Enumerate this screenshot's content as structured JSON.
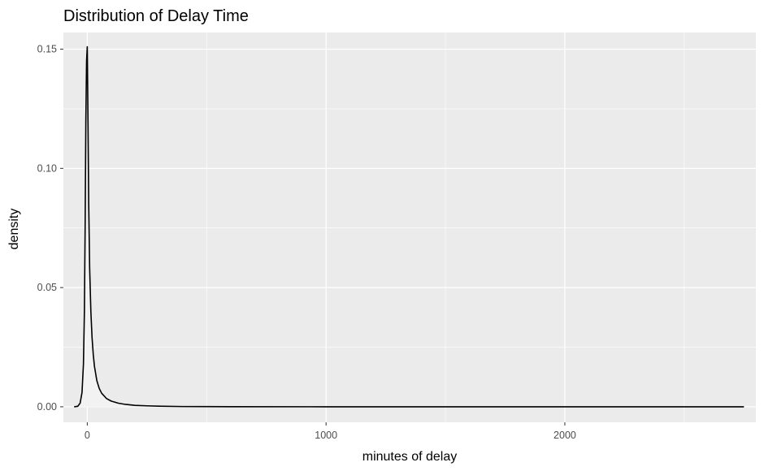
{
  "chart_data": {
    "type": "area",
    "title": "Distribution of Delay Time",
    "xlabel": "minutes of delay",
    "ylabel": "density",
    "xlim": [
      -100,
      2800
    ],
    "ylim": [
      -0.0065,
      0.157
    ],
    "x_ticks": [
      0,
      1000,
      2000
    ],
    "x_tick_labels": [
      "0",
      "1000",
      "2000"
    ],
    "x_minor_ticks": [
      -500,
      500,
      1500,
      2500
    ],
    "y_ticks": [
      0.0,
      0.05,
      0.1,
      0.15
    ],
    "y_tick_labels": [
      "0.00",
      "0.05",
      "0.10",
      "0.15"
    ],
    "y_minor_ticks": [
      0.025,
      0.075,
      0.125
    ],
    "grid": true,
    "legend": "none",
    "colors": {
      "panel_background": "#ebebeb",
      "grid": "#ffffff",
      "line": "#000000",
      "fill": "#f2f2f2",
      "tick_label": "#4d4d4d",
      "text": "#000000"
    },
    "series": [
      {
        "x": [
          -55,
          -40,
          -30,
          -22,
          -16,
          -12,
          -9,
          -6,
          -3,
          0,
          3,
          6,
          10,
          15,
          20,
          25,
          30,
          40,
          50,
          60,
          80,
          100,
          130,
          160,
          200,
          250,
          300,
          400,
          600,
          1000,
          1500,
          2000,
          2500,
          2750
        ],
        "y": [
          0,
          0.0002,
          0.0015,
          0.006,
          0.018,
          0.04,
          0.075,
          0.12,
          0.145,
          0.151,
          0.12,
          0.085,
          0.058,
          0.04,
          0.029,
          0.022,
          0.017,
          0.011,
          0.0077,
          0.0057,
          0.0035,
          0.0024,
          0.0015,
          0.001,
          0.0006,
          0.0004,
          0.00025,
          0.0001,
          3e-05,
          1e-05,
          5e-06,
          2e-06,
          1e-06,
          0
        ]
      }
    ]
  }
}
